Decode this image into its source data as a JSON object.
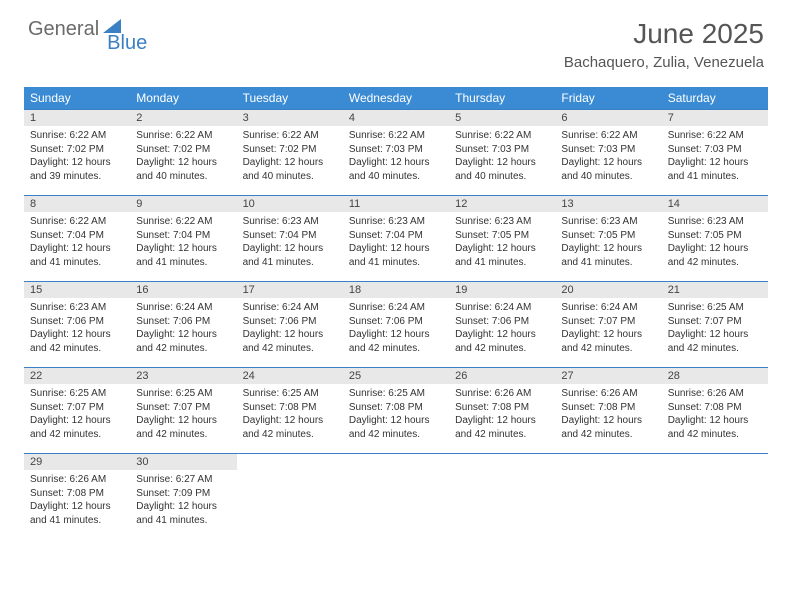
{
  "brand": {
    "part1": "General",
    "part2": "Blue"
  },
  "title": "June 2025",
  "location": "Bachaquero, Zulia, Venezuela",
  "colors": {
    "header_bg": "#3b8bd4",
    "header_text": "#ffffff",
    "rule": "#3b7fc4",
    "daynum_bg": "#e8e8e8",
    "text": "#333333",
    "brand_gray": "#6b6b6b",
    "brand_blue": "#3b7fc4",
    "page_bg": "#ffffff"
  },
  "weekdays": [
    "Sunday",
    "Monday",
    "Tuesday",
    "Wednesday",
    "Thursday",
    "Friday",
    "Saturday"
  ],
  "weeks": [
    [
      {
        "n": "1",
        "sr": "6:22 AM",
        "ss": "7:02 PM",
        "dl": "12 hours and 39 minutes."
      },
      {
        "n": "2",
        "sr": "6:22 AM",
        "ss": "7:02 PM",
        "dl": "12 hours and 40 minutes."
      },
      {
        "n": "3",
        "sr": "6:22 AM",
        "ss": "7:02 PM",
        "dl": "12 hours and 40 minutes."
      },
      {
        "n": "4",
        "sr": "6:22 AM",
        "ss": "7:03 PM",
        "dl": "12 hours and 40 minutes."
      },
      {
        "n": "5",
        "sr": "6:22 AM",
        "ss": "7:03 PM",
        "dl": "12 hours and 40 minutes."
      },
      {
        "n": "6",
        "sr": "6:22 AM",
        "ss": "7:03 PM",
        "dl": "12 hours and 40 minutes."
      },
      {
        "n": "7",
        "sr": "6:22 AM",
        "ss": "7:03 PM",
        "dl": "12 hours and 41 minutes."
      }
    ],
    [
      {
        "n": "8",
        "sr": "6:22 AM",
        "ss": "7:04 PM",
        "dl": "12 hours and 41 minutes."
      },
      {
        "n": "9",
        "sr": "6:22 AM",
        "ss": "7:04 PM",
        "dl": "12 hours and 41 minutes."
      },
      {
        "n": "10",
        "sr": "6:23 AM",
        "ss": "7:04 PM",
        "dl": "12 hours and 41 minutes."
      },
      {
        "n": "11",
        "sr": "6:23 AM",
        "ss": "7:04 PM",
        "dl": "12 hours and 41 minutes."
      },
      {
        "n": "12",
        "sr": "6:23 AM",
        "ss": "7:05 PM",
        "dl": "12 hours and 41 minutes."
      },
      {
        "n": "13",
        "sr": "6:23 AM",
        "ss": "7:05 PM",
        "dl": "12 hours and 41 minutes."
      },
      {
        "n": "14",
        "sr": "6:23 AM",
        "ss": "7:05 PM",
        "dl": "12 hours and 42 minutes."
      }
    ],
    [
      {
        "n": "15",
        "sr": "6:23 AM",
        "ss": "7:06 PM",
        "dl": "12 hours and 42 minutes."
      },
      {
        "n": "16",
        "sr": "6:24 AM",
        "ss": "7:06 PM",
        "dl": "12 hours and 42 minutes."
      },
      {
        "n": "17",
        "sr": "6:24 AM",
        "ss": "7:06 PM",
        "dl": "12 hours and 42 minutes."
      },
      {
        "n": "18",
        "sr": "6:24 AM",
        "ss": "7:06 PM",
        "dl": "12 hours and 42 minutes."
      },
      {
        "n": "19",
        "sr": "6:24 AM",
        "ss": "7:06 PM",
        "dl": "12 hours and 42 minutes."
      },
      {
        "n": "20",
        "sr": "6:24 AM",
        "ss": "7:07 PM",
        "dl": "12 hours and 42 minutes."
      },
      {
        "n": "21",
        "sr": "6:25 AM",
        "ss": "7:07 PM",
        "dl": "12 hours and 42 minutes."
      }
    ],
    [
      {
        "n": "22",
        "sr": "6:25 AM",
        "ss": "7:07 PM",
        "dl": "12 hours and 42 minutes."
      },
      {
        "n": "23",
        "sr": "6:25 AM",
        "ss": "7:07 PM",
        "dl": "12 hours and 42 minutes."
      },
      {
        "n": "24",
        "sr": "6:25 AM",
        "ss": "7:08 PM",
        "dl": "12 hours and 42 minutes."
      },
      {
        "n": "25",
        "sr": "6:25 AM",
        "ss": "7:08 PM",
        "dl": "12 hours and 42 minutes."
      },
      {
        "n": "26",
        "sr": "6:26 AM",
        "ss": "7:08 PM",
        "dl": "12 hours and 42 minutes."
      },
      {
        "n": "27",
        "sr": "6:26 AM",
        "ss": "7:08 PM",
        "dl": "12 hours and 42 minutes."
      },
      {
        "n": "28",
        "sr": "6:26 AM",
        "ss": "7:08 PM",
        "dl": "12 hours and 42 minutes."
      }
    ],
    [
      {
        "n": "29",
        "sr": "6:26 AM",
        "ss": "7:08 PM",
        "dl": "12 hours and 41 minutes."
      },
      {
        "n": "30",
        "sr": "6:27 AM",
        "ss": "7:09 PM",
        "dl": "12 hours and 41 minutes."
      },
      null,
      null,
      null,
      null,
      null
    ]
  ],
  "labels": {
    "sunrise": "Sunrise:",
    "sunset": "Sunset:",
    "daylight": "Daylight:"
  }
}
